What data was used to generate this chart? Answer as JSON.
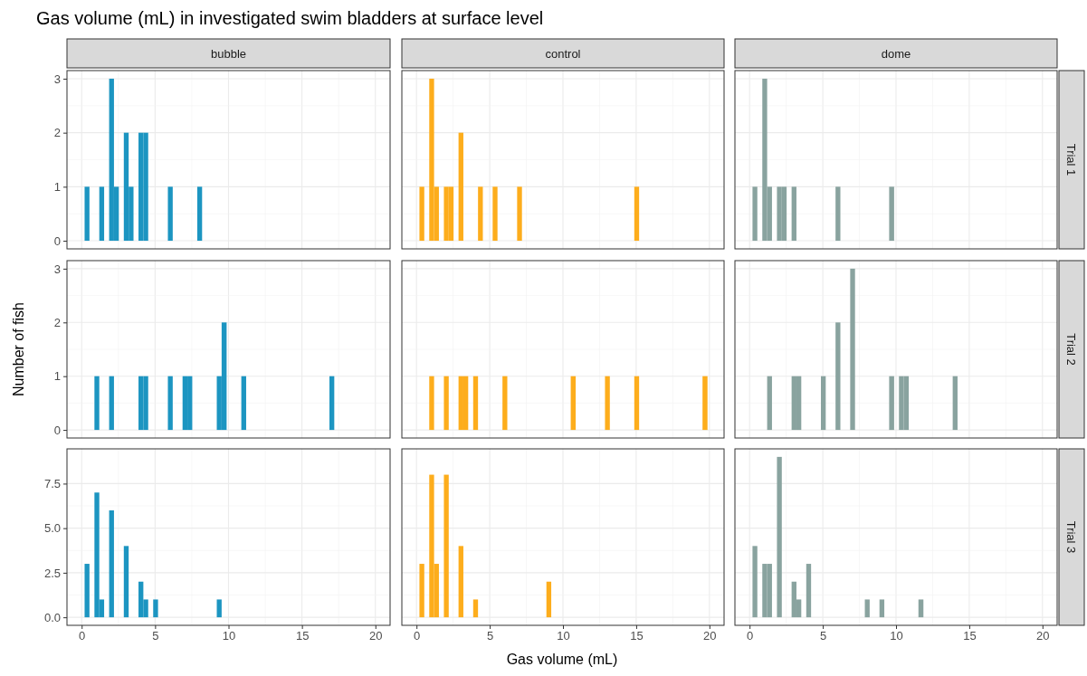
{
  "chart_data": [
    {
      "type": "histogram",
      "title": "Gas volume (mL) in investigated swim bladders at surface level",
      "subtitle": "bubble",
      "color": "#1c95c1",
      "xlim": [
        -1,
        21
      ],
      "xticks": [
        0,
        5,
        10,
        15,
        20
      ],
      "ylim": [
        -0.15,
        3.15
      ],
      "yticks": [
        0,
        1,
        2,
        3
      ],
      "grid": true,
      "tick_labels": "y",
      "bins": [
        0.2,
        0.53,
        0.87,
        1.2,
        1.53,
        1.87,
        2.2,
        2.53,
        2.87,
        3.2,
        3.53,
        3.87,
        4.2,
        4.53,
        4.87,
        5.2,
        5.53,
        5.87,
        6.2,
        6.53,
        6.87,
        7.2,
        7.53,
        7.87,
        8.2,
        8.53,
        8.87,
        9.2,
        9.53,
        9.87,
        10.2,
        10.53,
        10.87,
        11.2,
        11.53,
        11.87,
        12.2,
        12.53,
        12.87,
        13.2,
        13.53,
        13.87,
        14.2,
        14.53,
        14.87,
        15.2,
        15.53,
        15.87,
        16.2,
        16.53,
        16.87,
        17.2,
        17.53,
        17.87,
        18.2,
        18.53,
        18.87,
        19.2,
        19.53,
        19.87,
        20.2
      ],
      "values": [
        1,
        0,
        0,
        1,
        0,
        3,
        1,
        0,
        2,
        1,
        0,
        2,
        2,
        0,
        0,
        0,
        0,
        1,
        0,
        0,
        0,
        0,
        0,
        1,
        0,
        0,
        0,
        0,
        0,
        0,
        0,
        0,
        0,
        0,
        0,
        0,
        0,
        0,
        0,
        0,
        0,
        0,
        0,
        0,
        0,
        0,
        0,
        0,
        0,
        0,
        0,
        0,
        0,
        0,
        0,
        0,
        0,
        0,
        0,
        0
      ]
    },
    {
      "type": "histogram",
      "subtitle": "control",
      "color": "#fdad1c",
      "xlim": [
        -1,
        21
      ],
      "xticks": [
        0,
        5,
        10,
        15,
        20
      ],
      "ylim": [
        -0.15,
        3.15
      ],
      "yticks": [
        0,
        1,
        2,
        3
      ],
      "grid": true,
      "tick_labels": false,
      "bins": [
        0.2,
        0.53,
        0.87,
        1.2,
        1.53,
        1.87,
        2.2,
        2.53,
        2.87,
        3.2,
        3.53,
        3.87,
        4.2,
        4.53,
        4.87,
        5.2,
        5.53,
        5.87,
        6.2,
        6.53,
        6.87,
        7.2,
        7.53,
        7.87,
        8.2,
        8.53,
        8.87,
        9.2,
        9.53,
        9.87,
        10.2,
        10.53,
        10.87,
        11.2,
        11.53,
        11.87,
        12.2,
        12.53,
        12.87,
        13.2,
        13.53,
        13.87,
        14.2,
        14.53,
        14.87,
        15.2,
        15.53,
        15.87,
        16.2,
        16.53,
        16.87,
        17.2,
        17.53,
        17.87,
        18.2,
        18.53,
        18.87,
        19.2,
        19.53,
        19.87,
        20.2
      ],
      "values": [
        1,
        0,
        3,
        1,
        0,
        1,
        1,
        0,
        2,
        0,
        0,
        0,
        1,
        0,
        0,
        1,
        0,
        0,
        0,
        0,
        1,
        0,
        0,
        0,
        0,
        0,
        0,
        0,
        0,
        0,
        0,
        0,
        0,
        0,
        0,
        0,
        0,
        0,
        0,
        0,
        0,
        0,
        0,
        0,
        1,
        0,
        0,
        0,
        0,
        0,
        0,
        0,
        0,
        0,
        0,
        0,
        0,
        0,
        0,
        0
      ]
    },
    {
      "type": "histogram",
      "subtitle": "dome",
      "annotations": [
        "Trial 1"
      ],
      "color": "#89a39f",
      "xlim": [
        -1,
        21
      ],
      "xticks": [
        0,
        5,
        10,
        15,
        20
      ],
      "ylim": [
        -0.15,
        3.15
      ],
      "yticks": [
        0,
        1,
        2,
        3
      ],
      "grid": true,
      "tick_labels": false,
      "bins": [
        0.2,
        0.53,
        0.87,
        1.2,
        1.53,
        1.87,
        2.2,
        2.53,
        2.87,
        3.2,
        3.53,
        3.87,
        4.2,
        4.53,
        4.87,
        5.2,
        5.53,
        5.87,
        6.2,
        6.53,
        6.87,
        7.2,
        7.53,
        7.87,
        8.2,
        8.53,
        8.87,
        9.2,
        9.53,
        9.87,
        10.2,
        10.53,
        10.87,
        11.2,
        11.53,
        11.87,
        12.2,
        12.53,
        12.87,
        13.2,
        13.53,
        13.87,
        14.2,
        14.53,
        14.87,
        15.2,
        15.53,
        15.87,
        16.2,
        16.53,
        16.87,
        17.2,
        17.53,
        17.87,
        18.2,
        18.53,
        18.87,
        19.2,
        19.53,
        19.87,
        20.2
      ],
      "values": [
        1,
        0,
        3,
        1,
        0,
        1,
        1,
        0,
        1,
        0,
        0,
        0,
        0,
        0,
        0,
        0,
        0,
        1,
        0,
        0,
        0,
        0,
        0,
        0,
        0,
        0,
        0,
        0,
        1,
        0,
        0,
        0,
        0,
        0,
        0,
        0,
        0,
        0,
        0,
        0,
        0,
        0,
        0,
        0,
        0,
        0,
        0,
        0,
        0,
        0,
        0,
        0,
        0,
        0,
        0,
        0,
        0,
        0,
        0,
        0
      ]
    },
    {
      "type": "histogram",
      "ylabel": "Number of fish",
      "color": "#1c95c1",
      "xlim": [
        -1,
        21
      ],
      "xticks": [
        0,
        5,
        10,
        15,
        20
      ],
      "ylim": [
        -0.15,
        3.15
      ],
      "yticks": [
        0,
        1,
        2,
        3
      ],
      "grid": true,
      "tick_labels": "y",
      "bins": [
        0.2,
        0.53,
        0.87,
        1.2,
        1.53,
        1.87,
        2.2,
        2.53,
        2.87,
        3.2,
        3.53,
        3.87,
        4.2,
        4.53,
        4.87,
        5.2,
        5.53,
        5.87,
        6.2,
        6.53,
        6.87,
        7.2,
        7.53,
        7.87,
        8.2,
        8.53,
        8.87,
        9.2,
        9.53,
        9.87,
        10.2,
        10.53,
        10.87,
        11.2,
        11.53,
        11.87,
        12.2,
        12.53,
        12.87,
        13.2,
        13.53,
        13.87,
        14.2,
        14.53,
        14.87,
        15.2,
        15.53,
        15.87,
        16.2,
        16.53,
        16.87,
        17.2,
        17.53,
        17.87,
        18.2,
        18.53,
        18.87,
        19.2,
        19.53,
        19.87,
        20.2
      ],
      "values": [
        0,
        0,
        1,
        0,
        0,
        1,
        0,
        0,
        0,
        0,
        0,
        1,
        1,
        0,
        0,
        0,
        0,
        1,
        0,
        0,
        1,
        1,
        0,
        0,
        0,
        0,
        0,
        1,
        2,
        0,
        0,
        0,
        1,
        0,
        0,
        0,
        0,
        0,
        0,
        0,
        0,
        0,
        0,
        0,
        0,
        0,
        0,
        0,
        0,
        0,
        1,
        0,
        0,
        0,
        0,
        0,
        0,
        0,
        0,
        0
      ]
    },
    {
      "type": "histogram",
      "color": "#fdad1c",
      "xlim": [
        -1,
        21
      ],
      "xticks": [
        0,
        5,
        10,
        15,
        20
      ],
      "ylim": [
        -0.15,
        3.15
      ],
      "yticks": [
        0,
        1,
        2,
        3
      ],
      "grid": true,
      "tick_labels": false,
      "bins": [
        0.2,
        0.53,
        0.87,
        1.2,
        1.53,
        1.87,
        2.2,
        2.53,
        2.87,
        3.2,
        3.53,
        3.87,
        4.2,
        4.53,
        4.87,
        5.2,
        5.53,
        5.87,
        6.2,
        6.53,
        6.87,
        7.2,
        7.53,
        7.87,
        8.2,
        8.53,
        8.87,
        9.2,
        9.53,
        9.87,
        10.2,
        10.53,
        10.87,
        11.2,
        11.53,
        11.87,
        12.2,
        12.53,
        12.87,
        13.2,
        13.53,
        13.87,
        14.2,
        14.53,
        14.87,
        15.2,
        15.53,
        15.87,
        16.2,
        16.53,
        16.87,
        17.2,
        17.53,
        17.87,
        18.2,
        18.53,
        18.87,
        19.2,
        19.53,
        19.87,
        20.2
      ],
      "values": [
        0,
        0,
        1,
        0,
        0,
        1,
        0,
        0,
        1,
        1,
        0,
        1,
        0,
        0,
        0,
        0,
        0,
        1,
        0,
        0,
        0,
        0,
        0,
        0,
        0,
        0,
        0,
        0,
        0,
        0,
        0,
        1,
        0,
        0,
        0,
        0,
        0,
        0,
        1,
        0,
        0,
        0,
        0,
        0,
        1,
        0,
        0,
        0,
        0,
        0,
        0,
        0,
        0,
        0,
        0,
        0,
        0,
        0,
        1,
        0
      ]
    },
    {
      "type": "histogram",
      "annotations": [
        "Trial 2"
      ],
      "color": "#89a39f",
      "xlim": [
        -1,
        21
      ],
      "xticks": [
        0,
        5,
        10,
        15,
        20
      ],
      "ylim": [
        -0.15,
        3.15
      ],
      "yticks": [
        0,
        1,
        2,
        3
      ],
      "grid": true,
      "tick_labels": false,
      "bins": [
        0.2,
        0.53,
        0.87,
        1.2,
        1.53,
        1.87,
        2.2,
        2.53,
        2.87,
        3.2,
        3.53,
        3.87,
        4.2,
        4.53,
        4.87,
        5.2,
        5.53,
        5.87,
        6.2,
        6.53,
        6.87,
        7.2,
        7.53,
        7.87,
        8.2,
        8.53,
        8.87,
        9.2,
        9.53,
        9.87,
        10.2,
        10.53,
        10.87,
        11.2,
        11.53,
        11.87,
        12.2,
        12.53,
        12.87,
        13.2,
        13.53,
        13.87,
        14.2,
        14.53,
        14.87,
        15.2,
        15.53,
        15.87,
        16.2,
        16.53,
        16.87,
        17.2,
        17.53,
        17.87,
        18.2,
        18.53,
        18.87,
        19.2,
        19.53,
        19.87,
        20.2
      ],
      "values": [
        0,
        0,
        0,
        1,
        0,
        0,
        0,
        0,
        1,
        1,
        0,
        0,
        0,
        0,
        1,
        0,
        0,
        2,
        0,
        0,
        3,
        0,
        0,
        0,
        0,
        0,
        0,
        0,
        1,
        0,
        1,
        1,
        0,
        0,
        0,
        0,
        0,
        0,
        0,
        0,
        0,
        1,
        0,
        0,
        0,
        0,
        0,
        0,
        0,
        0,
        0,
        0,
        0,
        0,
        0,
        0,
        0,
        0,
        0,
        0
      ]
    },
    {
      "type": "histogram",
      "color": "#1c95c1",
      "xlim": [
        -1,
        21
      ],
      "xticks": [
        0,
        5,
        10,
        15,
        20
      ],
      "ylim": [
        -0.45,
        9.45
      ],
      "yticks": [
        {
          "value": 0,
          "label": "0.0"
        },
        2.5,
        {
          "value": 5,
          "label": "5.0"
        },
        7.5
      ],
      "grid": true,
      "bins": [
        0.2,
        0.53,
        0.87,
        1.2,
        1.53,
        1.87,
        2.2,
        2.53,
        2.87,
        3.2,
        3.53,
        3.87,
        4.2,
        4.53,
        4.87,
        5.2,
        5.53,
        5.87,
        6.2,
        6.53,
        6.87,
        7.2,
        7.53,
        7.87,
        8.2,
        8.53,
        8.87,
        9.2,
        9.53,
        9.87,
        10.2,
        10.53,
        10.87,
        11.2,
        11.53,
        11.87,
        12.2,
        12.53,
        12.87,
        13.2,
        13.53,
        13.87,
        14.2,
        14.53,
        14.87,
        15.2,
        15.53,
        15.87,
        16.2,
        16.53,
        16.87,
        17.2,
        17.53,
        17.87,
        18.2,
        18.53,
        18.87,
        19.2,
        19.53,
        19.87,
        20.2
      ],
      "values": [
        3,
        0,
        7,
        1,
        0,
        6,
        0,
        0,
        4,
        0,
        0,
        2,
        1,
        0,
        1,
        0,
        0,
        0,
        0,
        0,
        0,
        0,
        0,
        0,
        0,
        0,
        0,
        1,
        0,
        0,
        0,
        0,
        0,
        0,
        0,
        0,
        0,
        0,
        0,
        0,
        0,
        0,
        0,
        0,
        0,
        0,
        0,
        0,
        0,
        0,
        0,
        0,
        0,
        0,
        0,
        0,
        0,
        0,
        0,
        0
      ]
    },
    {
      "type": "histogram",
      "xlabel": "Gas volume (mL)",
      "color": "#fdad1c",
      "xlim": [
        -1,
        21
      ],
      "xticks": [
        0,
        5,
        10,
        15,
        20
      ],
      "ylim": [
        -0.45,
        9.45
      ],
      "yticks": [
        0,
        2.5,
        5,
        7.5
      ],
      "grid": true,
      "tick_labels": "x",
      "bins": [
        0.2,
        0.53,
        0.87,
        1.2,
        1.53,
        1.87,
        2.2,
        2.53,
        2.87,
        3.2,
        3.53,
        3.87,
        4.2,
        4.53,
        4.87,
        5.2,
        5.53,
        5.87,
        6.2,
        6.53,
        6.87,
        7.2,
        7.53,
        7.87,
        8.2,
        8.53,
        8.87,
        9.2,
        9.53,
        9.87,
        10.2,
        10.53,
        10.87,
        11.2,
        11.53,
        11.87,
        12.2,
        12.53,
        12.87,
        13.2,
        13.53,
        13.87,
        14.2,
        14.53,
        14.87,
        15.2,
        15.53,
        15.87,
        16.2,
        16.53,
        16.87,
        17.2,
        17.53,
        17.87,
        18.2,
        18.53,
        18.87,
        19.2,
        19.53,
        19.87,
        20.2
      ],
      "values": [
        3,
        0,
        8,
        3,
        0,
        8,
        0,
        0,
        4,
        0,
        0,
        1,
        0,
        0,
        0,
        0,
        0,
        0,
        0,
        0,
        0,
        0,
        0,
        0,
        0,
        0,
        2,
        0,
        0,
        0,
        0,
        0,
        0,
        0,
        0,
        0,
        0,
        0,
        0,
        0,
        0,
        0,
        0,
        0,
        0,
        0,
        0,
        0,
        0,
        0,
        0,
        0,
        0,
        0,
        0,
        0,
        0,
        0,
        0,
        0
      ]
    },
    {
      "type": "histogram",
      "annotations": [
        "Trial 3"
      ],
      "color": "#89a39f",
      "xlim": [
        -1,
        21
      ],
      "xticks": [
        0,
        5,
        10,
        15,
        20
      ],
      "ylim": [
        -0.45,
        9.45
      ],
      "yticks": [
        0,
        2.5,
        5,
        7.5
      ],
      "grid": true,
      "tick_labels": "x",
      "bins": [
        0.2,
        0.53,
        0.87,
        1.2,
        1.53,
        1.87,
        2.2,
        2.53,
        2.87,
        3.2,
        3.53,
        3.87,
        4.2,
        4.53,
        4.87,
        5.2,
        5.53,
        5.87,
        6.2,
        6.53,
        6.87,
        7.2,
        7.53,
        7.87,
        8.2,
        8.53,
        8.87,
        9.2,
        9.53,
        9.87,
        10.2,
        10.53,
        10.87,
        11.2,
        11.53,
        11.87,
        12.2,
        12.53,
        12.87,
        13.2,
        13.53,
        13.87,
        14.2,
        14.53,
        14.87,
        15.2,
        15.53,
        15.87,
        16.2,
        16.53,
        16.87,
        17.2,
        17.53,
        17.87,
        18.2,
        18.53,
        18.87,
        19.2,
        19.53,
        19.87,
        20.2
      ],
      "values": [
        4,
        0,
        3,
        3,
        0,
        9,
        0,
        0,
        2,
        1,
        0,
        3,
        0,
        0,
        0,
        0,
        0,
        0,
        0,
        0,
        0,
        0,
        0,
        1,
        0,
        0,
        1,
        0,
        0,
        0,
        0,
        0,
        0,
        0,
        1,
        0,
        0,
        0,
        0,
        0,
        0,
        0,
        0,
        0,
        0,
        0,
        0,
        0,
        0,
        0,
        0,
        0,
        0,
        0,
        0,
        0,
        0,
        0,
        0,
        0
      ]
    }
  ]
}
